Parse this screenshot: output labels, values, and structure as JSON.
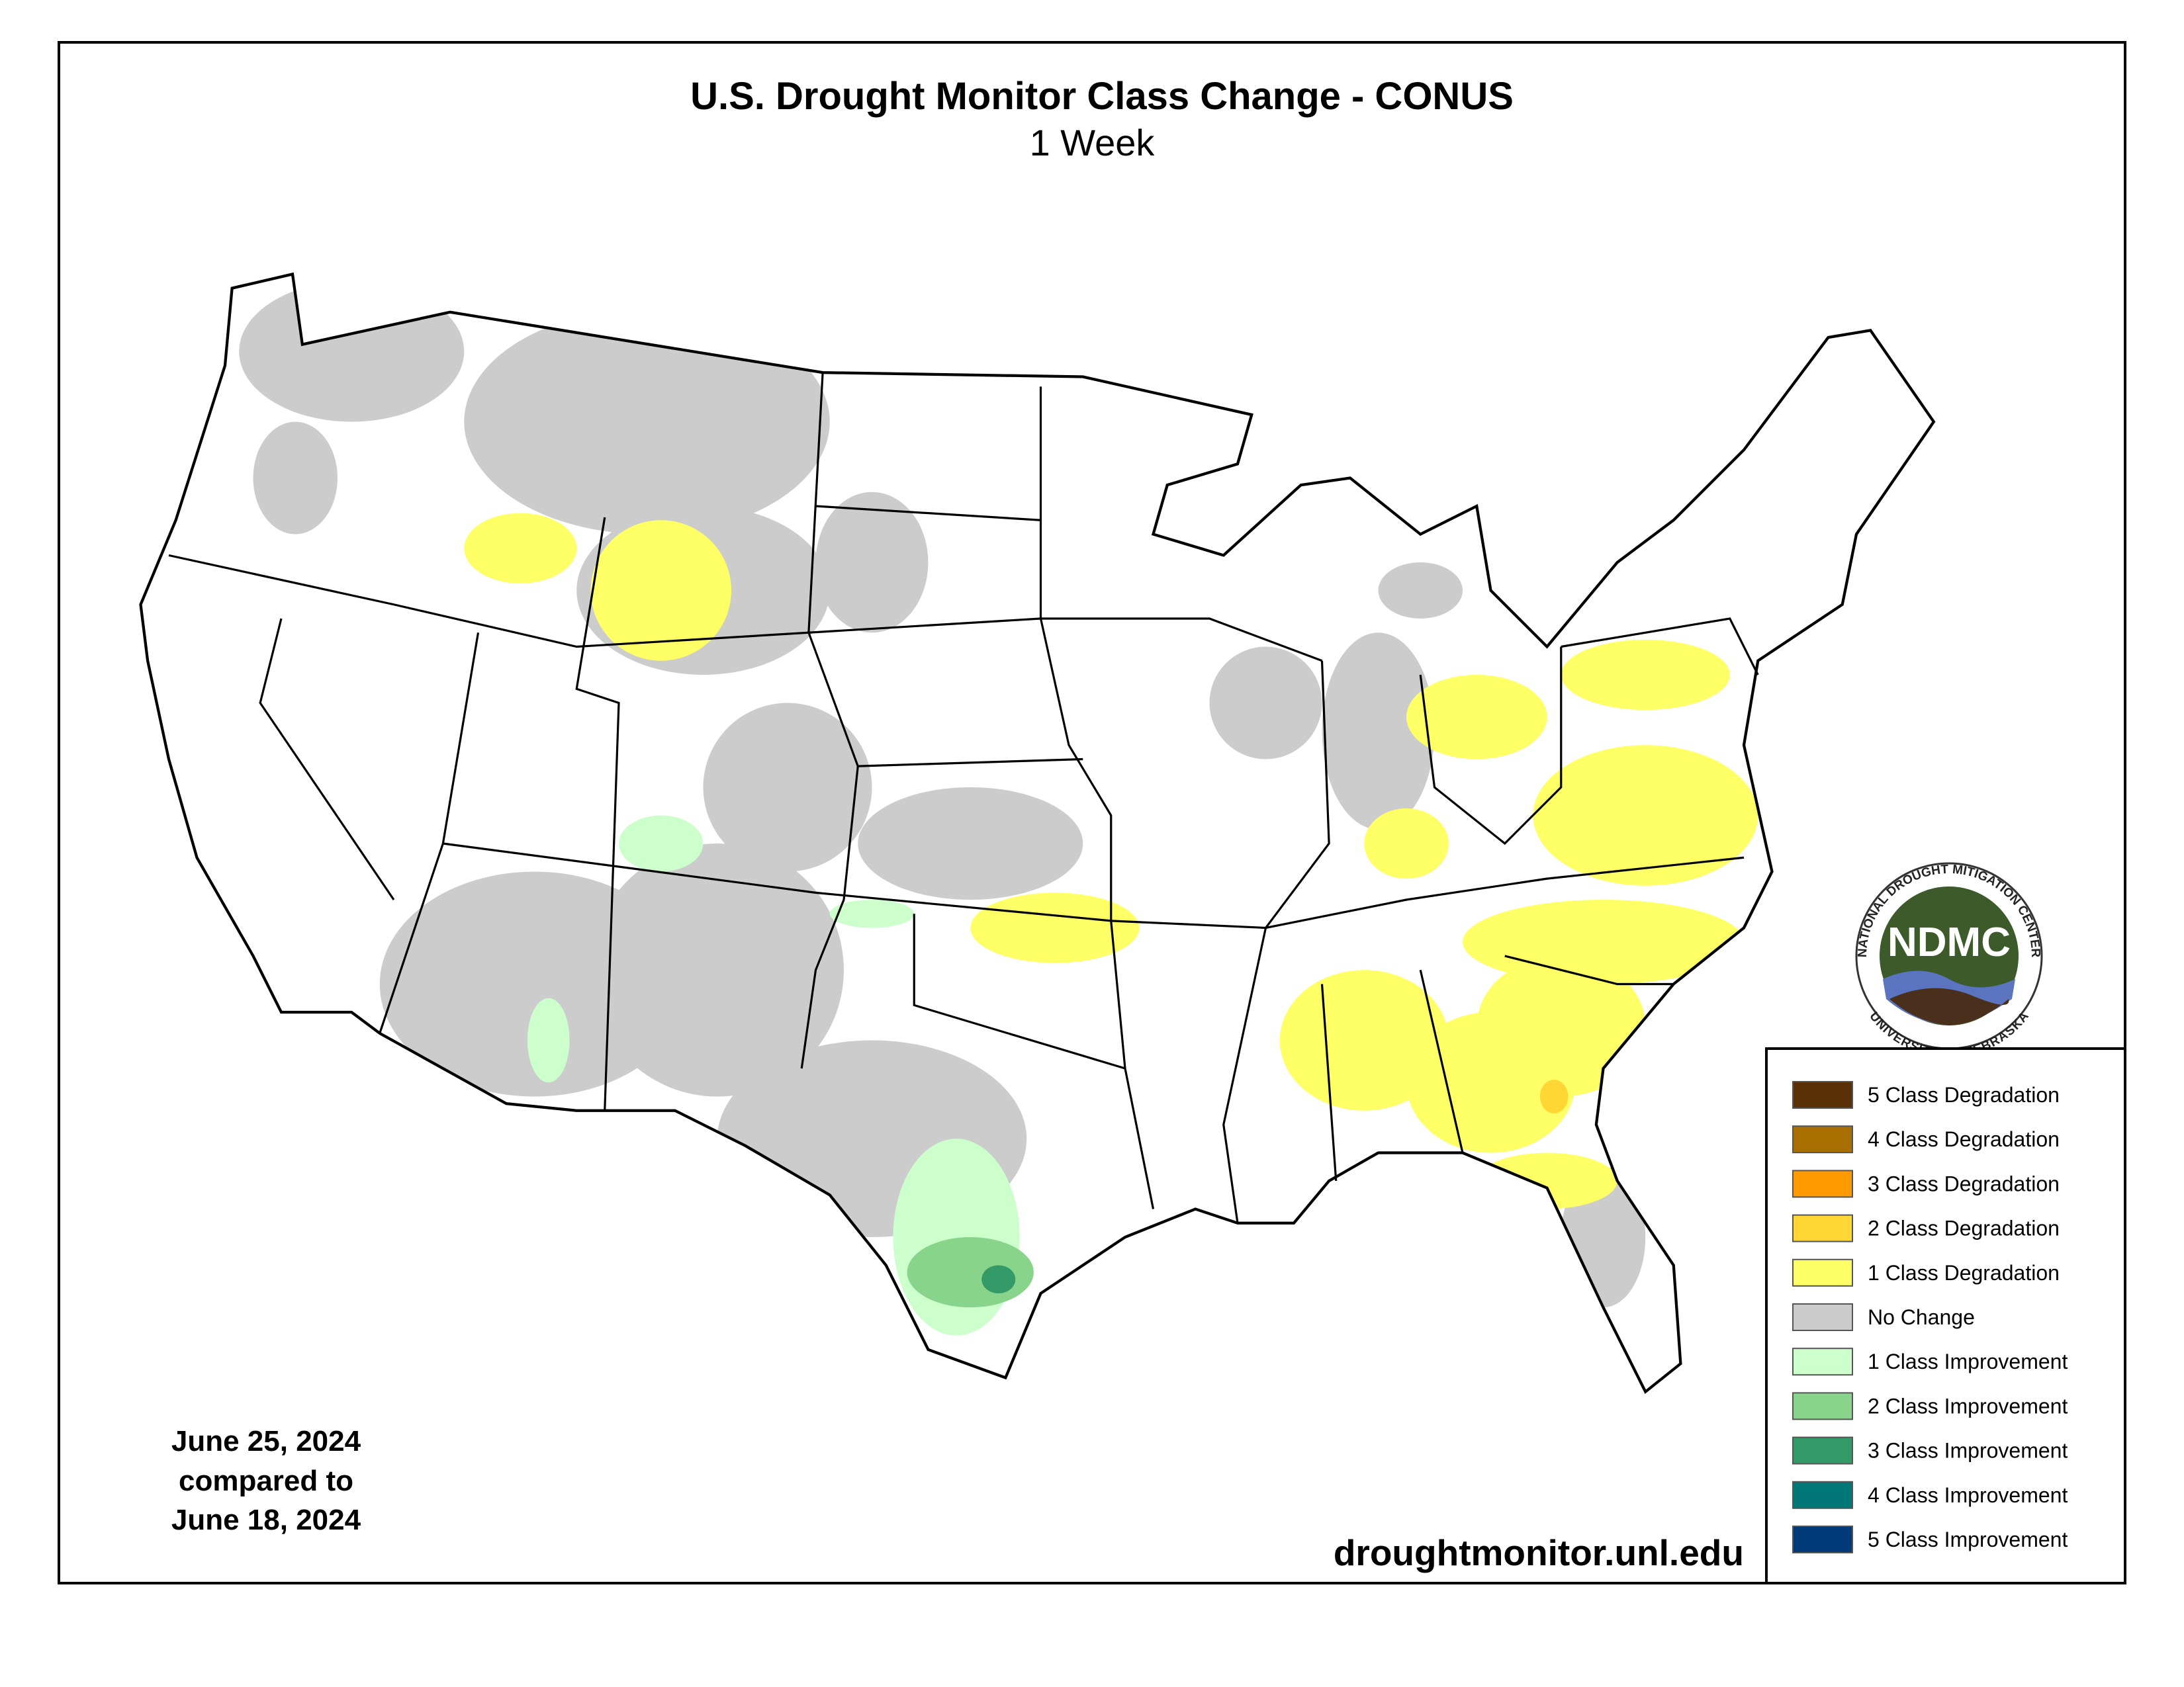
{
  "title": "U.S. Drought Monitor Class Change - CONUS",
  "subtitle": "1 Week",
  "date_note": [
    "June 25, 2024",
    "compared to",
    "June 18, 2024"
  ],
  "source": "droughtmonitor.unl.edu",
  "legend": [
    {
      "label": "5 Class Degradation",
      "color": "#5a3006"
    },
    {
      "label": "4 Class Degradation",
      "color": "#a86f00"
    },
    {
      "label": "3 Class Degradation",
      "color": "#ff9900"
    },
    {
      "label": "2 Class Degradation",
      "color": "#ffd633"
    },
    {
      "label": "1 Class Degradation",
      "color": "#ffff66"
    },
    {
      "label": "No Change",
      "color": "#cccccc"
    },
    {
      "label": "1 Class Improvement",
      "color": "#ccffcc"
    },
    {
      "label": "2 Class Improvement",
      "color": "#88d48a"
    },
    {
      "label": "3 Class Improvement",
      "color": "#339966"
    },
    {
      "label": "4 Class Improvement",
      "color": "#007777"
    },
    {
      "label": "5 Class Improvement",
      "color": "#003a78"
    }
  ],
  "logo": {
    "abbreviation": "NDMC",
    "top_text": "NATIONAL DROUGHT MITIGATION CENTER",
    "bottom_text": "UNIVERSITY OF NEBRASKA"
  }
}
